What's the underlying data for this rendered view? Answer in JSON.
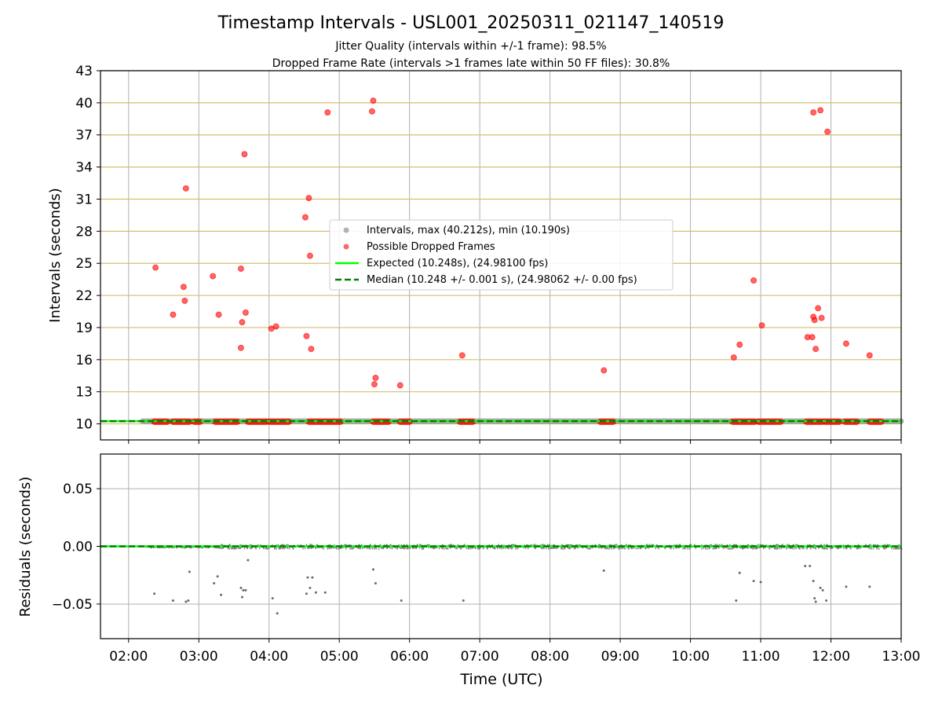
{
  "colors": {
    "interval_points": "#808080",
    "dropped": "#ff0000",
    "expected": "#00ff00",
    "median": "#008000",
    "hgrid_top": "#d4bf70",
    "grid": "#b0b0b0",
    "residual_points": "#505050"
  },
  "chart_data": [
    {
      "type": "scatter",
      "title": "Timestamp Intervals - USL001_20250311_021147_140519",
      "subtitle_line1": "Jitter Quality (intervals within +/-1 frame): 98.5%",
      "subtitle_line2": "Dropped Frame Rate (intervals >1 frames late within 50 FF files): 30.8%",
      "xlabel": "",
      "ylabel": "Intervals (seconds)",
      "xlim": [
        "01:36",
        "13:00"
      ],
      "ylim": [
        8.5,
        43
      ],
      "yticks": [
        10,
        13,
        16,
        19,
        22,
        25,
        28,
        31,
        34,
        37,
        40,
        43
      ],
      "legend_position": "center",
      "legend": [
        "Intervals, max (40.212s), min (10.190s)",
        "Possible Dropped Frames",
        "Expected (10.248s), (24.98100 fps)",
        "Median (10.248 +/- 0.001 s), (24.98062 +/- 0.00 fps)"
      ],
      "series": [
        {
          "name": "Intervals, max (40.212s), min (10.190s)",
          "baseline_value": 10.248,
          "x_range": [
            "02:12",
            "13:00"
          ]
        },
        {
          "name": "Possible Dropped Frames",
          "x": [
            "02:23",
            "02:38",
            "02:47",
            "02:48",
            "02:49",
            "03:12",
            "03:17",
            "03:36",
            "03:36",
            "03:37",
            "03:39",
            "03:40",
            "04:02",
            "04:06",
            "04:31",
            "04:32",
            "04:34",
            "04:35",
            "04:36",
            "04:50",
            "05:28",
            "05:29",
            "05:30",
            "05:31",
            "05:52",
            "06:45",
            "08:46",
            "10:37",
            "10:42",
            "10:54",
            "11:01",
            "11:40",
            "11:44",
            "11:45",
            "11:45",
            "11:46",
            "11:47",
            "11:49",
            "11:51",
            "11:52",
            "11:57",
            "12:13",
            "12:33"
          ],
          "y": [
            24.6,
            20.2,
            22.8,
            21.5,
            32.0,
            23.8,
            20.2,
            24.5,
            17.1,
            19.5,
            35.2,
            20.4,
            18.9,
            19.1,
            29.3,
            18.2,
            31.1,
            25.7,
            17.0,
            39.1,
            39.2,
            40.2,
            13.7,
            14.3,
            13.6,
            16.4,
            15.0,
            16.2,
            17.4,
            23.4,
            19.2,
            18.1,
            18.1,
            39.1,
            20.0,
            19.7,
            17.0,
            20.8,
            39.3,
            19.9,
            37.3,
            17.5,
            16.4
          ]
        },
        {
          "name": "Possible Dropped Frames (baseline band)",
          "x_ranges": [
            [
              "02:22",
              "02:33"
            ],
            [
              "02:38",
              "02:52"
            ],
            [
              "02:56",
              "03:01"
            ],
            [
              "03:14",
              "03:33"
            ],
            [
              "03:42",
              "03:58"
            ],
            [
              "04:00",
              "04:17"
            ],
            [
              "04:34",
              "05:01"
            ],
            [
              "05:29",
              "05:42"
            ],
            [
              "05:52",
              "06:00"
            ],
            [
              "06:43",
              "06:54"
            ],
            [
              "08:43",
              "08:54"
            ],
            [
              "10:36",
              "10:55"
            ],
            [
              "10:58",
              "11:17"
            ],
            [
              "11:39",
              "11:53"
            ],
            [
              "11:55",
              "12:07"
            ],
            [
              "12:12",
              "12:22"
            ],
            [
              "12:33",
              "12:43"
            ]
          ],
          "baseline_value": 10.2
        },
        {
          "name": "Expected (10.248s), (24.98100 fps)",
          "y": 10.248
        },
        {
          "name": "Median (10.248 +/- 0.001 s), (24.98062 +/- 0.00 fps)",
          "y": 10.248
        }
      ]
    },
    {
      "type": "scatter",
      "title": "",
      "xlabel": "Time (UTC)",
      "ylabel": "Residuals (seconds)",
      "xlim": [
        "01:36",
        "13:00"
      ],
      "ylim": [
        -0.08,
        0.08
      ],
      "yticks": [
        0.05,
        0.0,
        -0.05
      ],
      "ytick_labels": [
        "0.05",
        "0.00",
        "−0.05"
      ],
      "xticks": [
        "02:00",
        "03:00",
        "04:00",
        "05:00",
        "06:00",
        "07:00",
        "08:00",
        "09:00",
        "10:00",
        "11:00",
        "12:00",
        "13:00"
      ],
      "series": [
        {
          "name": "Residuals",
          "baseline_value": 0.0,
          "x_range": [
            "02:12",
            "13:00"
          ]
        },
        {
          "name": "Residual outliers",
          "x": [
            "02:22",
            "02:38",
            "02:49",
            "02:51",
            "02:52",
            "03:13",
            "03:16",
            "03:19",
            "03:36",
            "03:37",
            "03:38",
            "03:40",
            "03:42",
            "04:03",
            "04:07",
            "04:32",
            "04:33",
            "04:35",
            "04:37",
            "04:40",
            "04:48",
            "05:29",
            "05:31",
            "05:53",
            "06:46",
            "08:46",
            "10:39",
            "10:42",
            "10:54",
            "11:00",
            "11:38",
            "11:42",
            "11:45",
            "11:46",
            "11:47",
            "11:51",
            "11:53",
            "11:56",
            "12:13",
            "12:33"
          ],
          "y": [
            -0.041,
            -0.047,
            -0.048,
            -0.047,
            -0.022,
            -0.032,
            -0.026,
            -0.042,
            -0.036,
            -0.044,
            -0.038,
            -0.038,
            -0.012,
            -0.045,
            -0.058,
            -0.041,
            -0.027,
            -0.036,
            -0.027,
            -0.04,
            -0.04,
            -0.02,
            -0.032,
            -0.047,
            -0.047,
            -0.021,
            -0.047,
            -0.023,
            -0.03,
            -0.031,
            -0.017,
            -0.017,
            -0.03,
            -0.045,
            -0.048,
            -0.036,
            -0.038,
            -0.047,
            -0.035,
            -0.035
          ]
        },
        {
          "name": "Expected",
          "y": 0.0
        },
        {
          "name": "Median",
          "y": 0.0
        }
      ]
    }
  ]
}
